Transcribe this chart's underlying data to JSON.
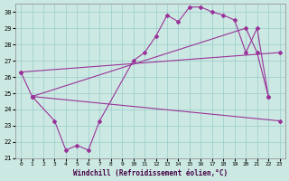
{
  "xlabel": "Windchill (Refroidissement éolien,°C)",
  "xlim": [
    -0.5,
    23.5
  ],
  "ylim": [
    21,
    30.5
  ],
  "yticks": [
    21,
    22,
    23,
    24,
    25,
    26,
    27,
    28,
    29,
    30
  ],
  "xticks": [
    0,
    1,
    2,
    3,
    4,
    5,
    6,
    7,
    8,
    9,
    10,
    11,
    12,
    13,
    14,
    15,
    16,
    17,
    18,
    19,
    20,
    21,
    22,
    23
  ],
  "bg_color": "#cce8e2",
  "grid_color": "#99cccc",
  "line_color": "#993399",
  "curve1_x": [
    0,
    1,
    3,
    4,
    5,
    6,
    7,
    10,
    11,
    12,
    13,
    14,
    15,
    16,
    17,
    18,
    19,
    20,
    21,
    22
  ],
  "curve1_y": [
    26.3,
    24.8,
    23.3,
    21.5,
    21.8,
    21.5,
    23.3,
    27.0,
    27.5,
    28.5,
    29.8,
    29.4,
    30.3,
    30.3,
    30.0,
    29.8,
    29.5,
    27.5,
    29.0,
    24.8
  ],
  "curve2_x": [
    1,
    23
  ],
  "curve2_y": [
    24.8,
    23.3
  ],
  "curve3_x": [
    0,
    23
  ],
  "curve3_y": [
    26.3,
    27.5
  ],
  "curve4_x": [
    1,
    20,
    21,
    22
  ],
  "curve4_y": [
    24.8,
    29.0,
    27.5,
    24.8
  ]
}
